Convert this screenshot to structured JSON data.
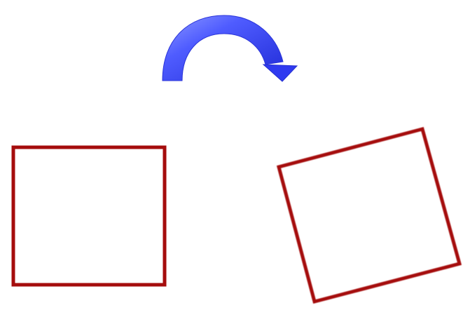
{
  "diagram": {
    "kind": "rotation-illustration",
    "shapes": [
      {
        "name": "original-square",
        "rotation_deg": 0,
        "outline_color": "#a50d0d"
      },
      {
        "name": "rotated-square",
        "rotation_deg": -16,
        "outline_color": "#a50d0d"
      }
    ],
    "arrow": {
      "direction": "clockwise",
      "color": "#3344ee",
      "highlight_color": "#8f9bff",
      "shadow_color": "#1f2ad6"
    },
    "background_color": "#ffffff"
  }
}
